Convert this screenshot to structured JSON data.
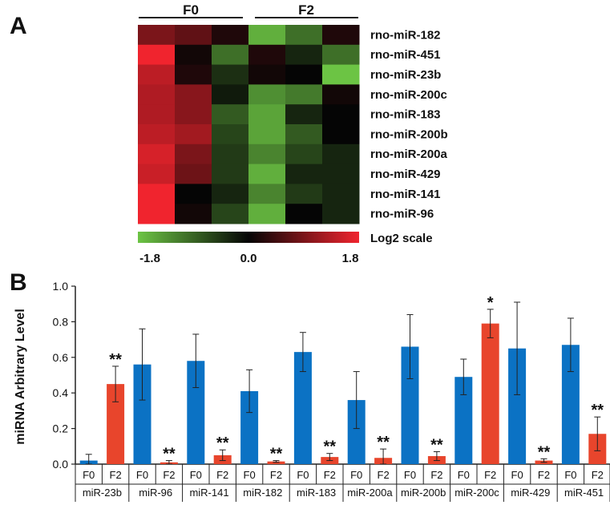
{
  "panel_a": {
    "label": "A",
    "group_headers": [
      "F0",
      "F2"
    ],
    "scale_label": "Log2 scale",
    "scale_ticks": [
      "-1.8",
      "0.0",
      "1.8"
    ],
    "scale_range": [
      -1.8,
      1.8
    ],
    "colors": {
      "low": "#6cc444",
      "mid": "#050505",
      "high": "#f0242e"
    }
  },
  "panel_b": {
    "label": "B"
  },
  "chart_data": [
    {
      "type": "heatmap",
      "rows": [
        "rno-miR-182",
        "rno-miR-451",
        "rno-miR-23b",
        "rno-miR-200c",
        "rno-miR-183",
        "rno-miR-200b",
        "rno-miR-200a",
        "rno-miR-429",
        "rno-miR-141",
        "rno-miR-96"
      ],
      "column_groups": [
        "F0",
        "F0",
        "F0",
        "F2",
        "F2",
        "F2"
      ],
      "values": [
        [
          0.9,
          0.7,
          0.2,
          -1.6,
          -1.0,
          0.2
        ],
        [
          1.8,
          0.1,
          -1.0,
          0.2,
          -0.3,
          -1.0
        ],
        [
          1.4,
          0.2,
          -0.4,
          0.1,
          0.0,
          -1.8
        ],
        [
          1.3,
          1.0,
          -0.2,
          -1.3,
          -1.1,
          0.1
        ],
        [
          1.3,
          1.0,
          -0.8,
          -1.5,
          -0.3,
          0.0
        ],
        [
          1.4,
          1.2,
          -0.6,
          -1.5,
          -0.8,
          0.0
        ],
        [
          1.6,
          0.9,
          -0.5,
          -1.2,
          -0.6,
          -0.3
        ],
        [
          1.5,
          0.8,
          -0.5,
          -1.6,
          -0.3,
          -0.3
        ],
        [
          1.8,
          0.0,
          -0.3,
          -1.2,
          -0.5,
          -0.3
        ],
        [
          1.8,
          0.1,
          -0.6,
          -1.6,
          0.0,
          -0.3
        ]
      ],
      "color_range": [
        -1.8,
        1.8
      ]
    },
    {
      "type": "bar",
      "ylabel": "miRNA Arbitrary Level",
      "ylim": [
        0,
        1.0
      ],
      "yticks": [
        "0.0",
        "0.2",
        "0.4",
        "0.6",
        "0.8",
        "1.0"
      ],
      "groups": [
        "miR-23b",
        "miR-96",
        "miR-141",
        "miR-182",
        "miR-183",
        "miR-200a",
        "miR-200b",
        "miR-200c",
        "miR-429",
        "miR-451"
      ],
      "series": [
        {
          "name": "F0",
          "color": "#0b72c4",
          "values": [
            0.02,
            0.56,
            0.58,
            0.41,
            0.63,
            0.36,
            0.66,
            0.49,
            0.65,
            0.67
          ],
          "errors": [
            0.035,
            0.2,
            0.15,
            0.12,
            0.11,
            0.16,
            0.18,
            0.1,
            0.26,
            0.15
          ],
          "significance": [
            "",
            "",
            "",
            "",
            "",
            "",
            "",
            "",
            "",
            ""
          ]
        },
        {
          "name": "F2",
          "color": "#e8452c",
          "values": [
            0.45,
            0.01,
            0.05,
            0.015,
            0.04,
            0.035,
            0.045,
            0.79,
            0.02,
            0.17
          ],
          "errors": [
            0.1,
            0.01,
            0.03,
            0.005,
            0.02,
            0.05,
            0.025,
            0.08,
            0.01,
            0.095
          ],
          "significance": [
            "**",
            "**",
            "**",
            "**",
            "**",
            "**",
            "**",
            "*",
            "**",
            "**"
          ]
        }
      ]
    }
  ]
}
